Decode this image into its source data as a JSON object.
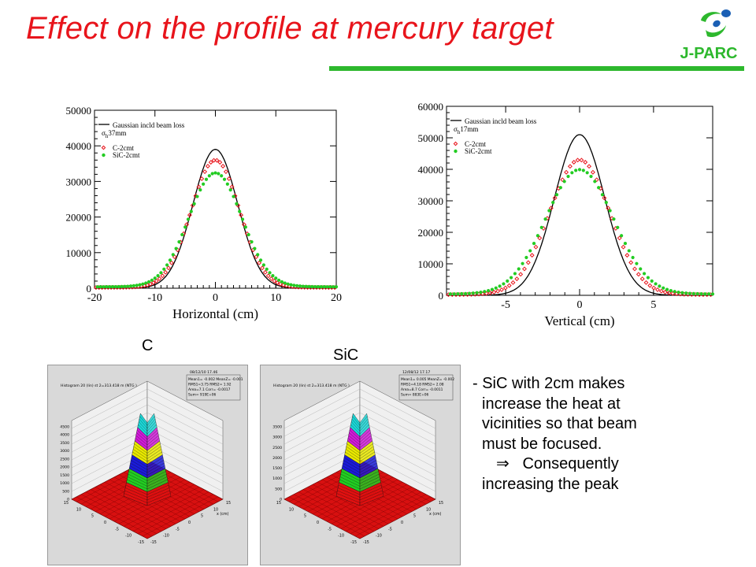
{
  "title": "Effect on the profile at mercury target",
  "logo": {
    "text": "J-PARC",
    "colors": {
      "green": "#2db82d",
      "blue": "#1a5fb4"
    }
  },
  "colors": {
    "title": "#e8141b",
    "rule": "#2db82d",
    "c_series": "#e8141b",
    "sic_series": "#22cc22"
  },
  "chart_data": [
    {
      "type": "scatter",
      "xlabel": "Horizontal (cm)",
      "ylabel": "",
      "xlim": [
        -20,
        20
      ],
      "ylim": [
        0,
        50000
      ],
      "xticks": [
        "-20",
        "-10",
        "0",
        "10",
        "20"
      ],
      "yticks": [
        "0",
        "10000",
        "20000",
        "30000",
        "40000",
        "50000"
      ],
      "legend": {
        "placement": "top-left",
        "line1": "Gaussian incld beam loss",
        "sigma_sym": "σ",
        "sigma_sub": "h",
        "sigma_val": "37mm",
        "c_label": "C-2cmt",
        "sic_label": "SiC-2cmt"
      },
      "series": [
        {
          "name": "Gaussian incld beam loss",
          "kind": "line",
          "amplitude": 39000,
          "sigma_cm": 3.7
        },
        {
          "name": "C-2cmt",
          "kind": "points",
          "amplitude": 35800,
          "sigma_cm": 4.0,
          "baseline": 200
        },
        {
          "name": "SiC-2cmt",
          "kind": "points",
          "amplitude": 32000,
          "sigma_cm": 4.4,
          "baseline": 400
        }
      ]
    },
    {
      "type": "scatter",
      "xlabel": "Vertical (cm)",
      "ylabel": "",
      "xlim": [
        -9,
        9
      ],
      "ylim": [
        0,
        60000
      ],
      "xticks": [
        "-5",
        "0",
        "5"
      ],
      "yticks": [
        "0",
        "10000",
        "20000",
        "30000",
        "40000",
        "50000",
        "60000"
      ],
      "legend": {
        "placement": "top-left",
        "line1": "Gaussian incld beam loss",
        "sigma_sym": "σ",
        "sigma_sub": "h",
        "sigma_val": "17mm",
        "c_label": "C-2cmt",
        "sic_label": "SiC-2cmt"
      },
      "series": [
        {
          "name": "Gaussian incld beam loss",
          "kind": "line",
          "amplitude": 51000,
          "sigma_cm": 1.7
        },
        {
          "name": "C-2cmt",
          "kind": "points",
          "amplitude": 42800,
          "sigma_cm": 2.05,
          "baseline": 200
        },
        {
          "name": "SiC-2cmt",
          "kind": "points",
          "amplitude": 39500,
          "sigma_cm": 2.3,
          "baseline": 400
        }
      ]
    }
  ],
  "labels": {
    "c": "C",
    "sic": "SiC"
  },
  "histograms": [
    {
      "title": "Histogram 20 (lin) st 2=313.418 m (NTG )",
      "date": "08/12/10 17.46",
      "stats": [
        "Mean1= -0.002  MeanZ= -0.001",
        "RMS1=3.75  RMS2= 1.92",
        "Area=7.1  Corr= -0.0017",
        "Sum= 919E+06"
      ],
      "zticks": [
        "0",
        "500",
        "1000",
        "1500",
        "2000",
        "2500",
        "3000",
        "3500",
        "4000",
        "4500"
      ],
      "ticks": [
        "15",
        "10",
        "5",
        "0",
        "-5",
        "-10",
        "-15"
      ],
      "axis_x": "x (cm)",
      "peak": 4500
    },
    {
      "title": "Histogram 20 (lin) st 2=313.418 m (NTG )",
      "date": "12/08/12 17.17",
      "stats": [
        "Mean1= 0.005  MeanZ= -0.002",
        "RMS1=4.18  RMS2= 2.08",
        "Area=8.7  Corr= -0.0011",
        "Sum= 883E+06"
      ],
      "zticks": [
        "0",
        "500",
        "1000",
        "1500",
        "2000",
        "2500",
        "3000",
        "3500"
      ],
      "ticks": [
        "15",
        "10",
        "5",
        "0",
        "-5",
        "-10",
        "-15"
      ],
      "axis_x": "x (cm)",
      "peak": 3500
    }
  ],
  "note": {
    "lines": [
      "- SiC with 2cm makes",
      "  increase the heat at",
      "  vicinities so that beam",
      "  must be focused."
    ],
    "arrow": "⇒",
    "line5": "Consequently",
    "line6": "increasing the peak"
  }
}
